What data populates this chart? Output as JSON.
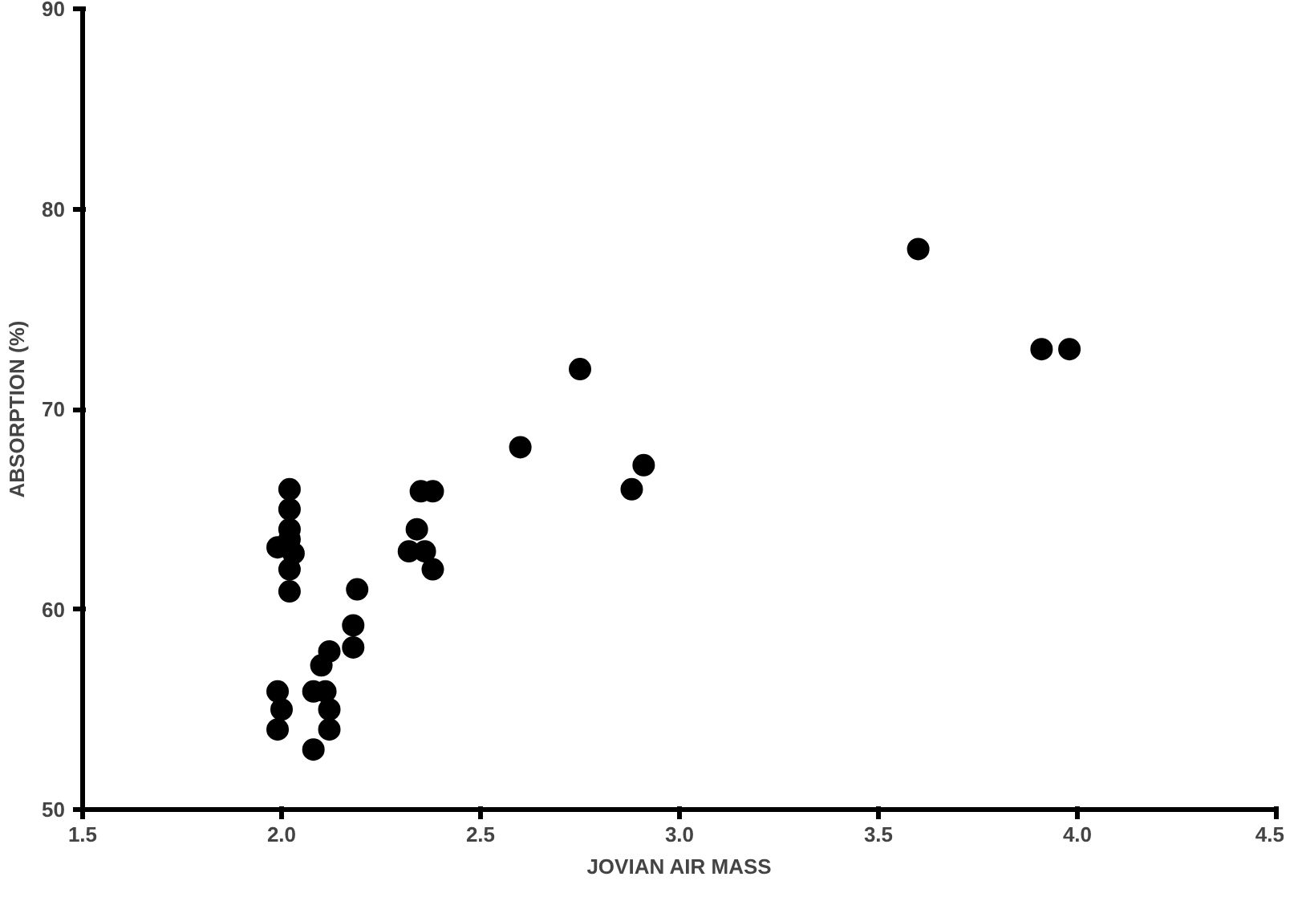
{
  "chart_data": {
    "type": "scatter",
    "xlabel": "JOVIAN AIR MASS",
    "ylabel": "ABSORPTION (%)",
    "xlim": [
      1.5,
      4.5
    ],
    "xticks": [
      {
        "value": 1.5,
        "label": "1.5"
      },
      {
        "value": 2.0,
        "label": "2.0"
      },
      {
        "value": 2.5,
        "label": "2.5"
      },
      {
        "value": 3.0,
        "label": "3.0"
      },
      {
        "value": 3.5,
        "label": "3.5"
      },
      {
        "value": 4.0,
        "label": "4.0"
      },
      {
        "value": 4.5,
        "label": "4.5"
      }
    ],
    "ylim": [
      50,
      90
    ],
    "yticks": [
      50,
      60,
      70,
      80,
      90
    ],
    "grid": false,
    "marker": "circle",
    "series": [
      {
        "color": "#000000",
        "x": [
          3.6,
          3.91,
          3.98,
          2.75,
          2.6,
          2.91,
          2.88,
          2.35,
          2.38,
          2.34,
          2.32,
          2.36,
          2.38,
          2.19,
          2.18,
          2.18,
          2.12,
          2.1,
          2.08,
          2.11,
          2.12,
          2.12,
          2.08,
          1.99,
          2.0,
          1.99,
          2.02,
          2.02,
          2.02,
          1.99,
          2.03,
          2.02,
          2.02,
          2.02
        ],
        "values": [
          78,
          73,
          73,
          72,
          68.1,
          67.2,
          66,
          65.9,
          65.9,
          64,
          62.9,
          62.9,
          62,
          61,
          59.2,
          58.1,
          57.9,
          57.2,
          55.9,
          55.9,
          55,
          54,
          53,
          55.9,
          55,
          54,
          66,
          65,
          64,
          63.1,
          62.8,
          62,
          60.9,
          63.5
        ]
      }
    ]
  }
}
